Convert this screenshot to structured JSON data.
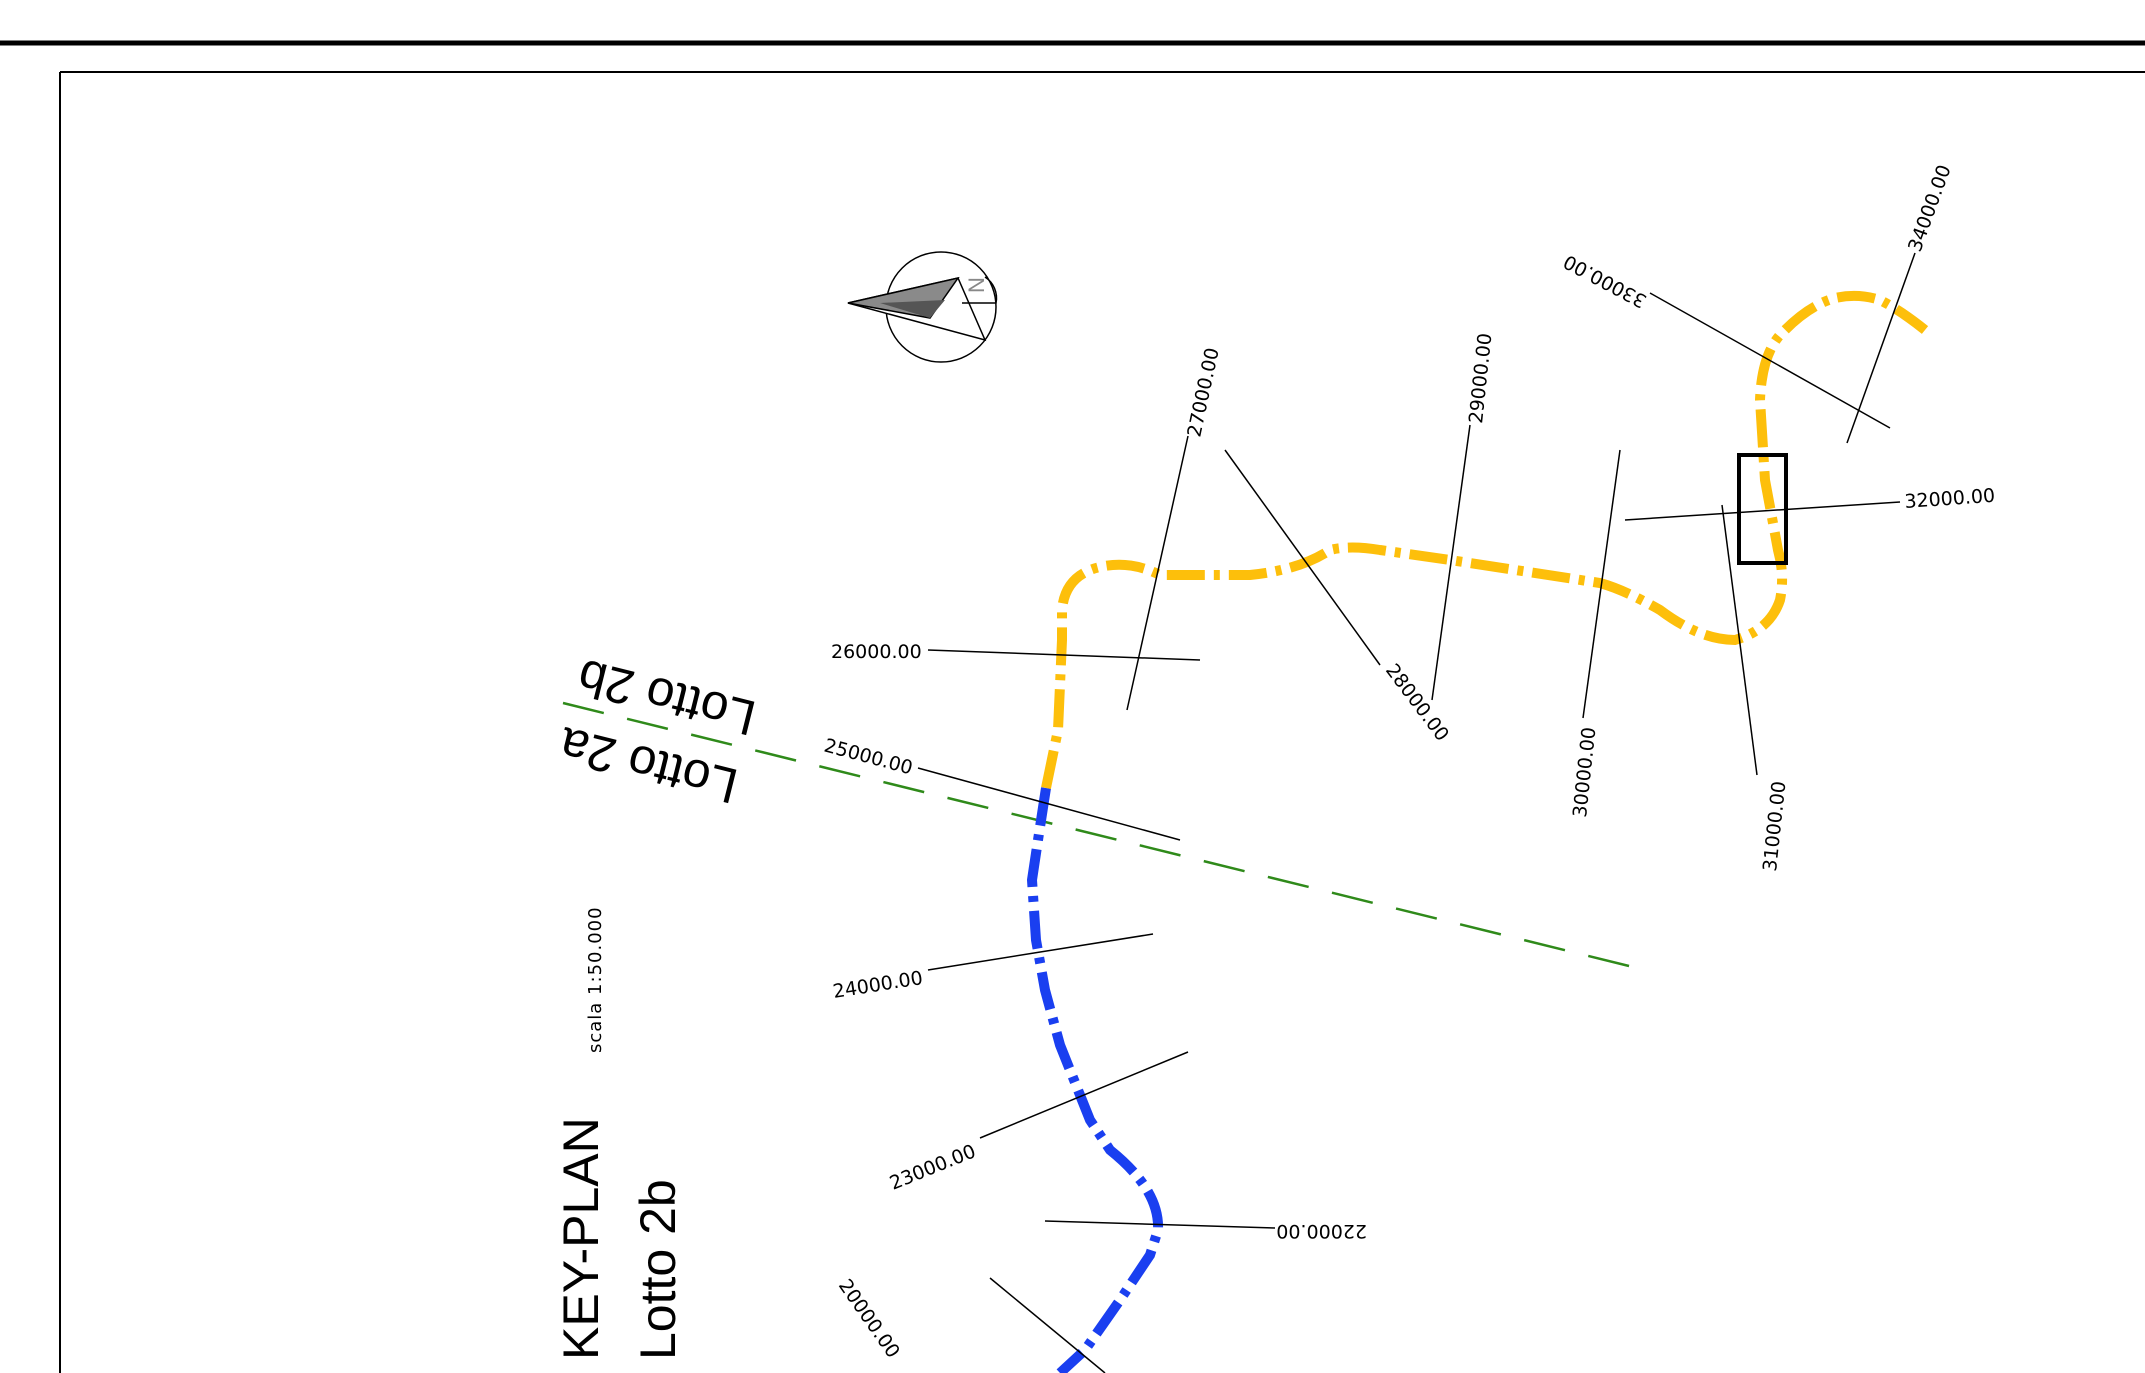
{
  "title": "KEY-PLAN",
  "subtitle": "Lotto 2b",
  "scale": "scala  1:50.000",
  "lots": {
    "lot_a": "Lotto 2a",
    "lot_b": "Lotto 2b"
  },
  "north_letter": "N",
  "stations": {
    "s20000": "20000.00",
    "s22000": "22000.00",
    "s23000": "23000.00",
    "s24000": "24000.00",
    "s25000": "25000.00",
    "s26000": "26000.00",
    "s27000": "27000.00",
    "s28000": "28000.00",
    "s29000": "29000.00",
    "s30000": "30000.00",
    "s31000": "31000.00",
    "s32000": "32000.00",
    "s33000": "33000.00",
    "s34000": "34000.00"
  },
  "colors": {
    "lot_2a_route": "#1a3ff0",
    "lot_2b_route": "#fdbf0b",
    "lot_boundary": "#2f8a1a",
    "frame": "#000000"
  }
}
